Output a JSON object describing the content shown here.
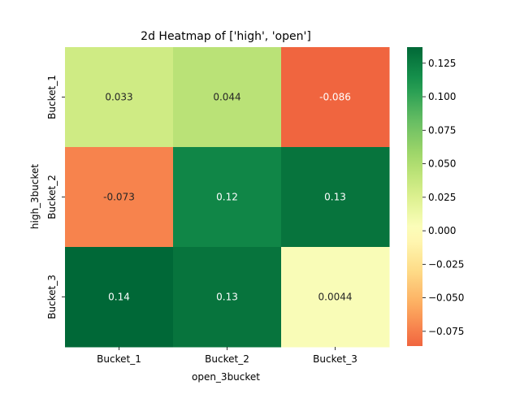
{
  "chart_data": {
    "type": "heatmap",
    "title": "2d Heatmap of ['high', 'open']",
    "xlabel": "open_3bucket",
    "ylabel": "high_3bucket",
    "x_categories": [
      "Bucket_1",
      "Bucket_2",
      "Bucket_3"
    ],
    "y_categories": [
      "Bucket_1",
      "Bucket_2",
      "Bucket_3"
    ],
    "values": [
      [
        0.033,
        0.044,
        -0.086
      ],
      [
        -0.073,
        0.12,
        0.13
      ],
      [
        0.14,
        0.13,
        0.0044
      ]
    ],
    "cell_labels": [
      [
        "0.033",
        "0.044",
        "-0.086"
      ],
      [
        "-0.073",
        "0.12",
        "0.13"
      ],
      [
        "0.14",
        "0.13",
        "0.0044"
      ]
    ],
    "colormap": "RdYlGn",
    "colorbar": {
      "vmin": -0.086,
      "vmax": 0.137,
      "ticks": [
        -0.075,
        -0.05,
        -0.025,
        0.0,
        0.025,
        0.05,
        0.075,
        0.1,
        0.125
      ],
      "tick_labels": [
        "−0.075",
        "−0.050",
        "−0.025",
        "0.000",
        "0.025",
        "0.050",
        "0.075",
        "0.100",
        "0.125"
      ]
    }
  }
}
